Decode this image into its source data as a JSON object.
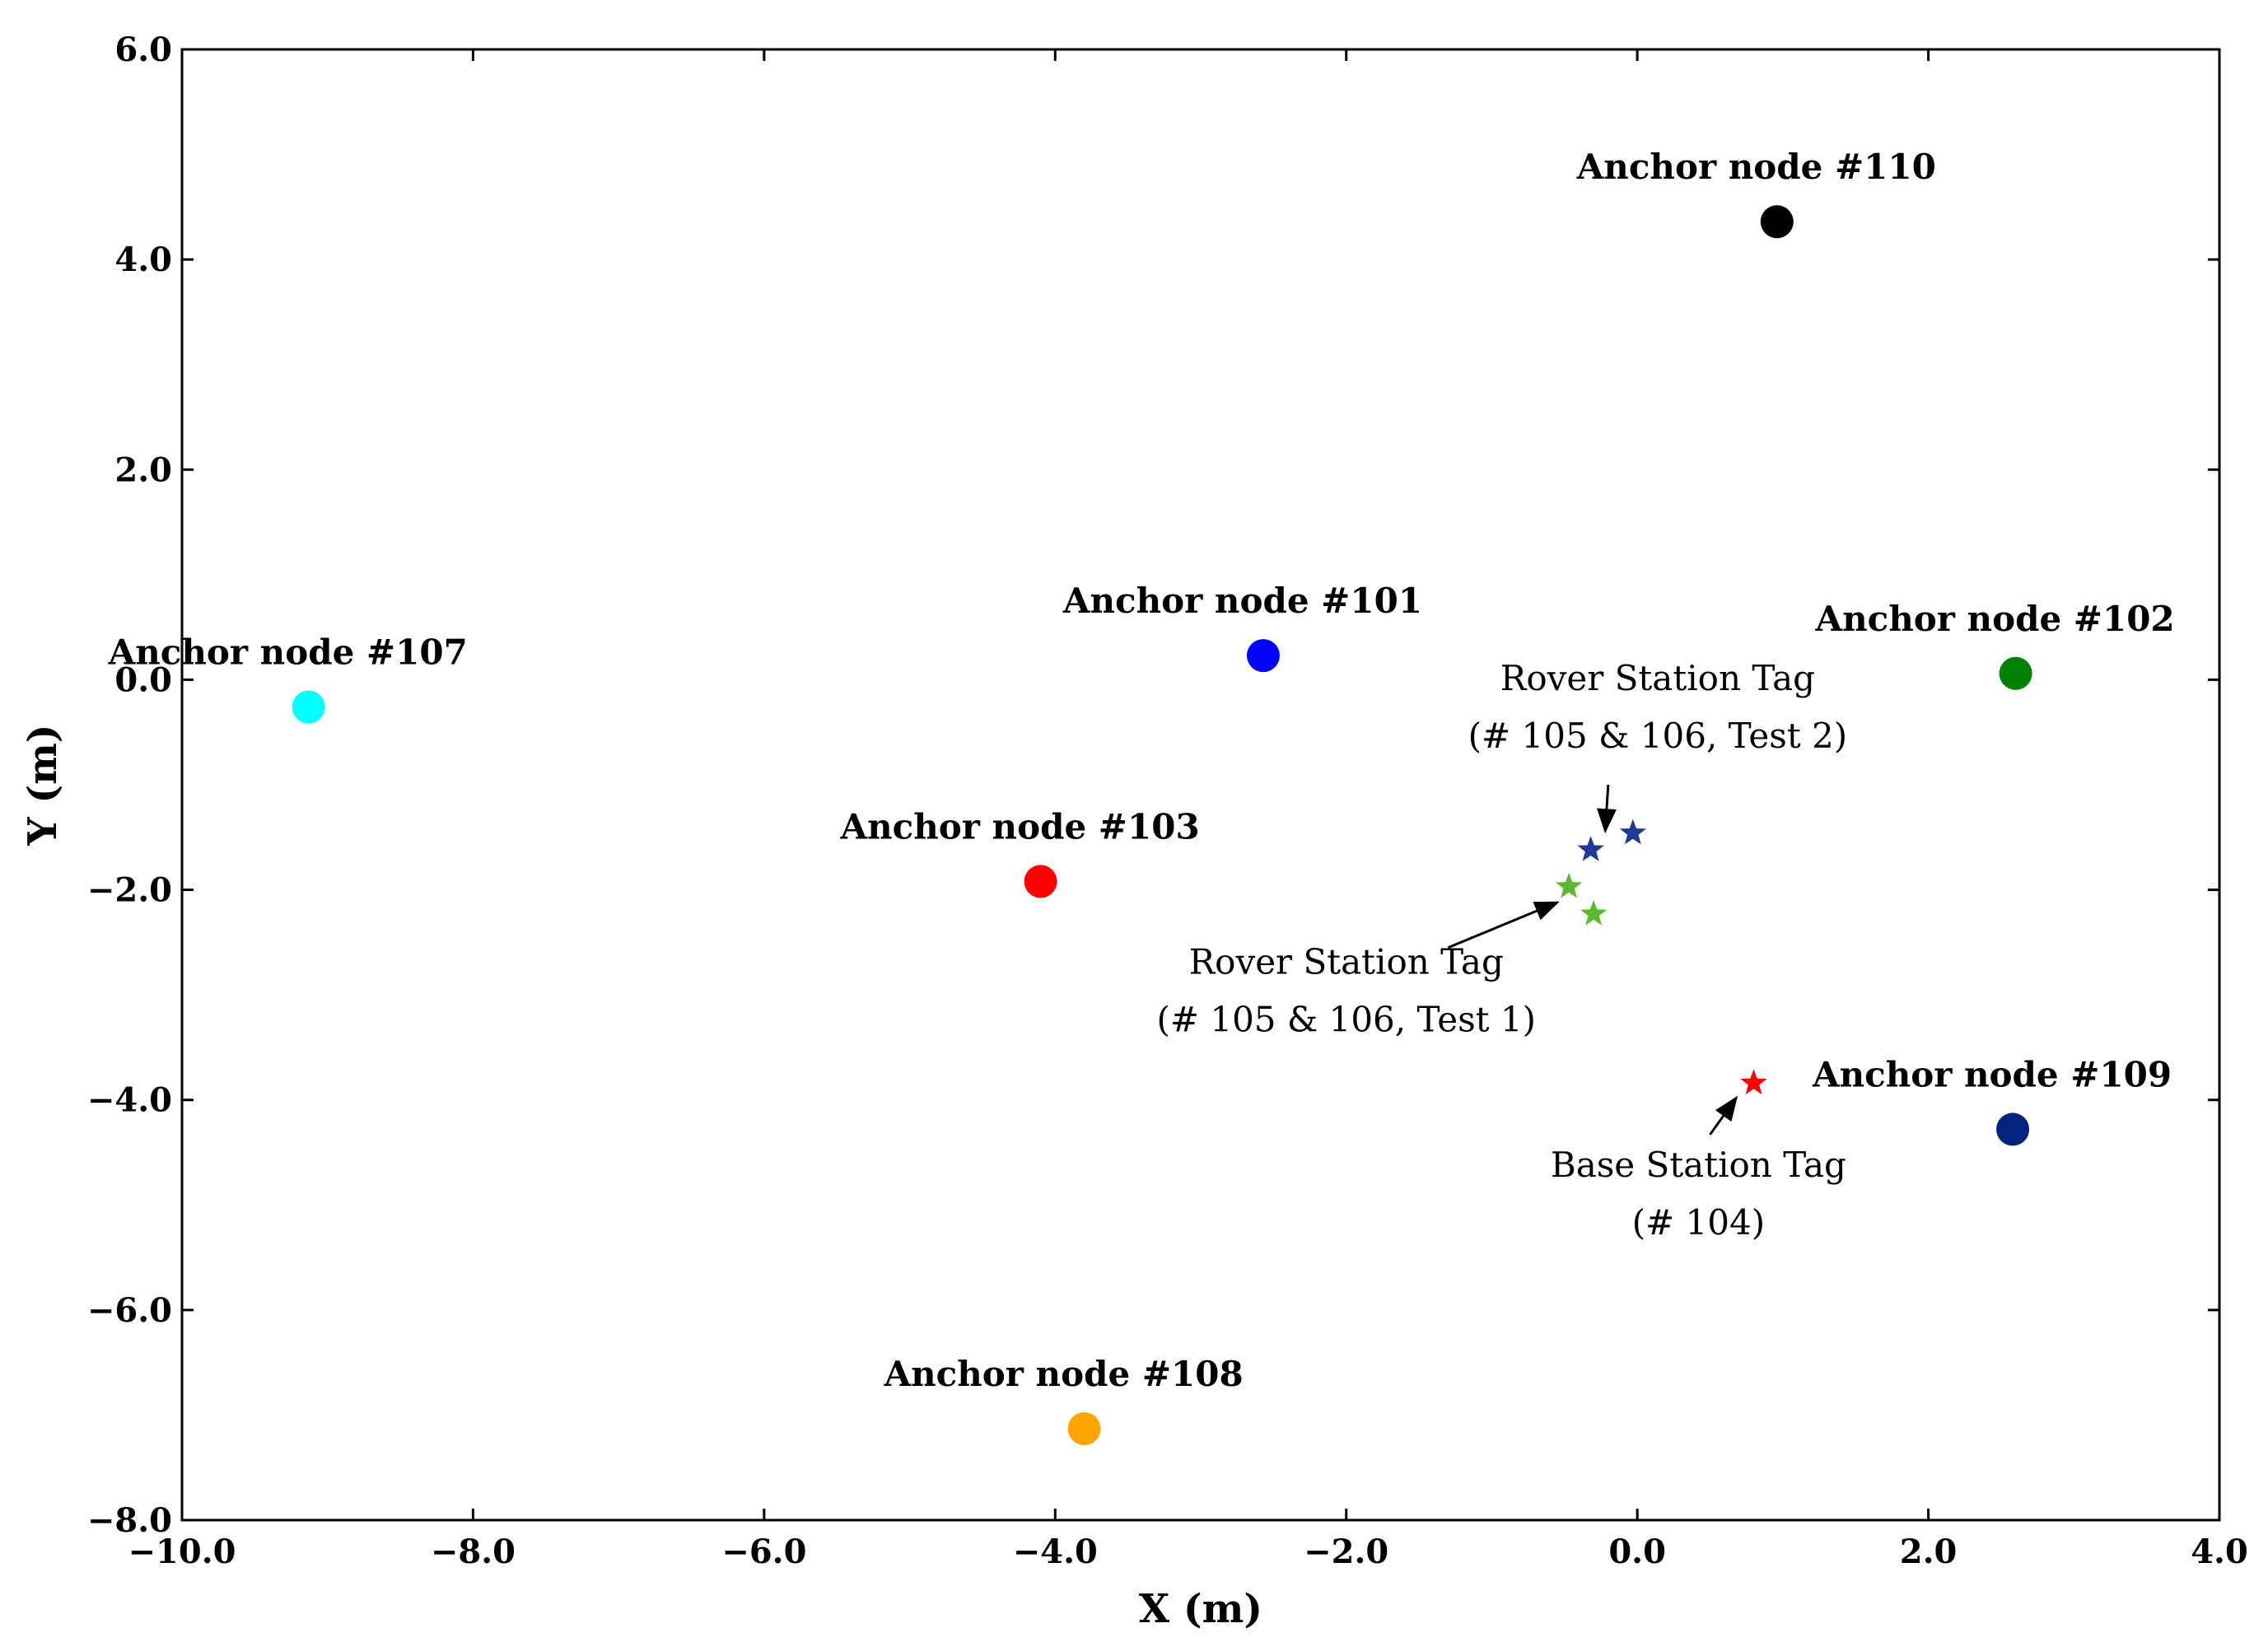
{
  "chart_data": {
    "type": "scatter",
    "title": "",
    "xlabel": "X (m)",
    "ylabel": "Y (m)",
    "xlim": [
      -10,
      4
    ],
    "ylim": [
      -8,
      6
    ],
    "grid": false,
    "x_ticks": [
      -10,
      -8,
      -6,
      -4,
      -2,
      0,
      2,
      4
    ],
    "y_ticks": [
      -8,
      -6,
      -4,
      -2,
      0,
      2,
      4,
      6
    ],
    "x_tick_labels": [
      "−10.0",
      "−8.0",
      "−6.0",
      "−4.0",
      "−2.0",
      "0.0",
      "2.0",
      "4.0"
    ],
    "y_tick_labels": [
      "−8.0",
      "−6.0",
      "−4.0",
      "−2.0",
      "0.0",
      "2.0",
      "4.0",
      "6.0"
    ],
    "anchors": [
      {
        "id": "101",
        "label": "Anchor node #101",
        "x": -2.57,
        "y": 0.23,
        "color": "#0000ff"
      },
      {
        "id": "102",
        "label": "Anchor node #102",
        "x": 2.6,
        "y": 0.06,
        "color": "#008000"
      },
      {
        "id": "103",
        "label": "Anchor node #103",
        "x": -4.1,
        "y": -1.92,
        "color": "#ff0000"
      },
      {
        "id": "107",
        "label": "Anchor node #107",
        "x": -9.13,
        "y": -0.26,
        "color": "#00ffff"
      },
      {
        "id": "108",
        "label": "Anchor node #108",
        "x": -3.8,
        "y": -7.13,
        "color": "#ffa500"
      },
      {
        "id": "109",
        "label": "Anchor node #109",
        "x": 2.58,
        "y": -4.28,
        "color": "#00247d"
      },
      {
        "id": "110",
        "label": "Anchor node #110",
        "x": 0.96,
        "y": 4.36,
        "color": "#000000"
      }
    ],
    "tags": [
      {
        "group": "test2",
        "x": -0.32,
        "y": -1.62,
        "color": "#1f3a93"
      },
      {
        "group": "test2",
        "x": -0.03,
        "y": -1.46,
        "color": "#1f3a93"
      },
      {
        "group": "test1",
        "x": -0.47,
        "y": -1.97,
        "color": "#5cb82e"
      },
      {
        "group": "test1",
        "x": -0.3,
        "y": -2.23,
        "color": "#5cb82e"
      },
      {
        "group": "base",
        "x": 0.8,
        "y": -3.84,
        "color": "#ff0000"
      }
    ],
    "annotations": [
      {
        "id": "test2",
        "lines": [
          "Rover Station Tag",
          "(# 105 & 106, Test 2)"
        ],
        "text_x": 0.14,
        "text_y": -0.1,
        "arrow_from": [
          -0.2,
          -1.0
        ],
        "arrow_to": [
          -0.22,
          -1.44
        ]
      },
      {
        "id": "test1",
        "lines": [
          "Rover Station Tag",
          "(# 105 & 106, Test 1)"
        ],
        "text_x": -2.0,
        "text_y": -2.8,
        "arrow_from": [
          -1.3,
          -2.55
        ],
        "arrow_to": [
          -0.55,
          -2.12
        ]
      },
      {
        "id": "base",
        "lines": [
          "Base Station Tag",
          "(# 104)"
        ],
        "text_x": 0.42,
        "text_y": -4.73,
        "arrow_from": [
          0.5,
          -4.33
        ],
        "arrow_to": [
          0.68,
          -3.98
        ]
      }
    ]
  }
}
